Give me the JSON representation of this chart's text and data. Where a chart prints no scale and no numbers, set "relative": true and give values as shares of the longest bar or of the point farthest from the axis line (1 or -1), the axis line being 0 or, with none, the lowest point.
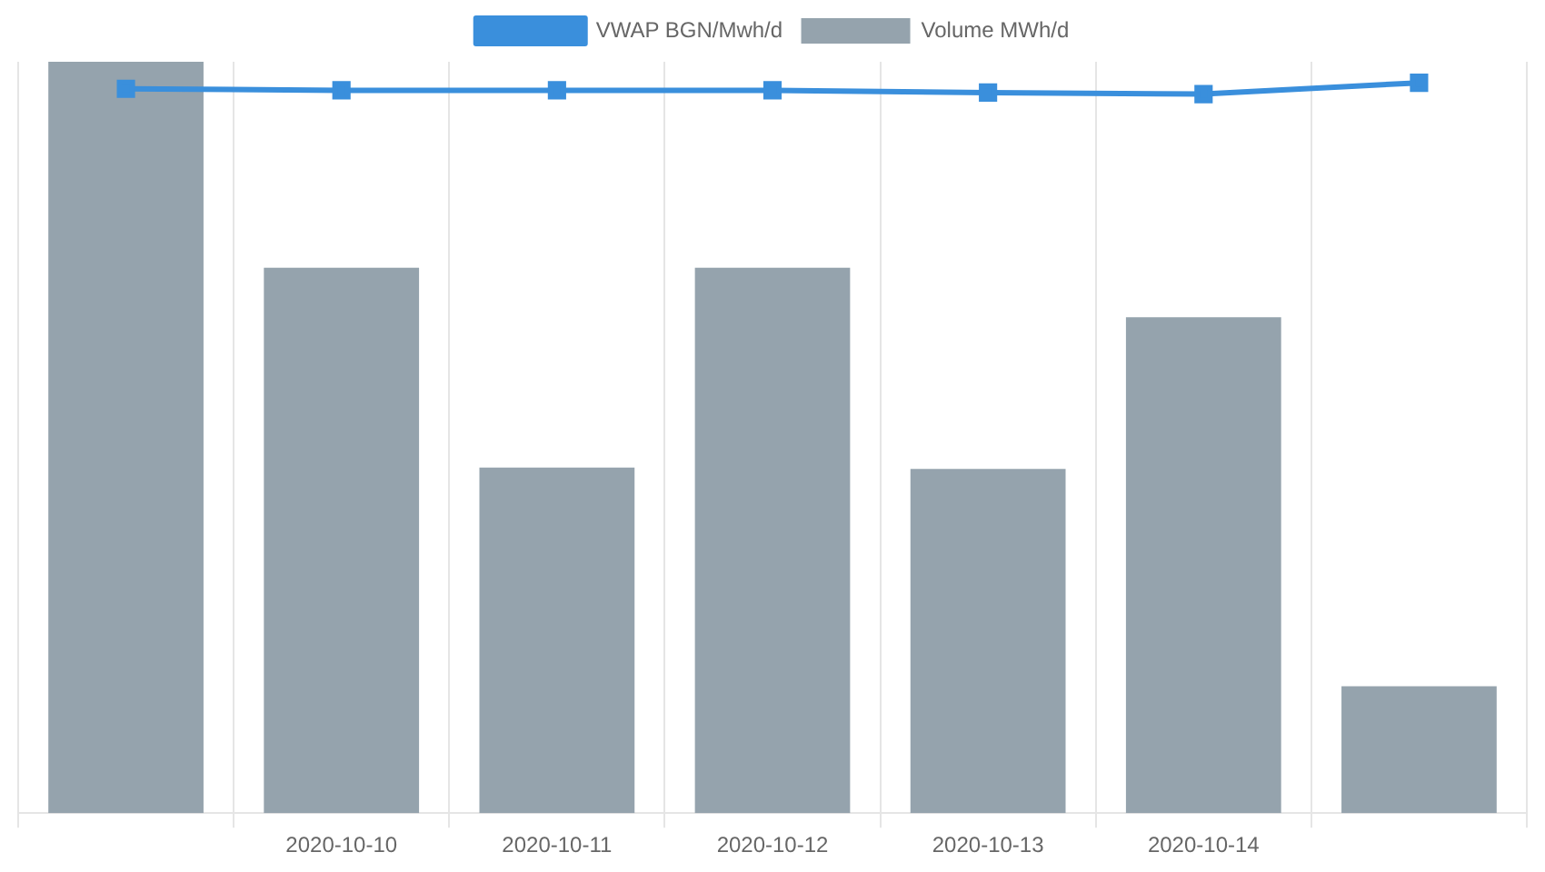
{
  "chart_data": {
    "type": "bar",
    "relative": true,
    "categories": [
      null,
      "2020-10-10",
      "2020-10-11",
      "2020-10-12",
      "2020-10-13",
      "2020-10-14",
      null
    ],
    "series": [
      {
        "name": "VWAP BGN/Mwh/d",
        "type": "line",
        "color": "#3a8fdc",
        "marker": "square",
        "values": [
          0.964,
          0.962,
          0.962,
          0.962,
          0.959,
          0.957,
          0.972
        ]
      },
      {
        "name": "Volume MWh/d",
        "color": "#95a3ad",
        "values": [
          1,
          0.726,
          0.46,
          0.726,
          0.458,
          0.66,
          0.169
        ]
      }
    ],
    "grid": "x",
    "legend": "top"
  }
}
